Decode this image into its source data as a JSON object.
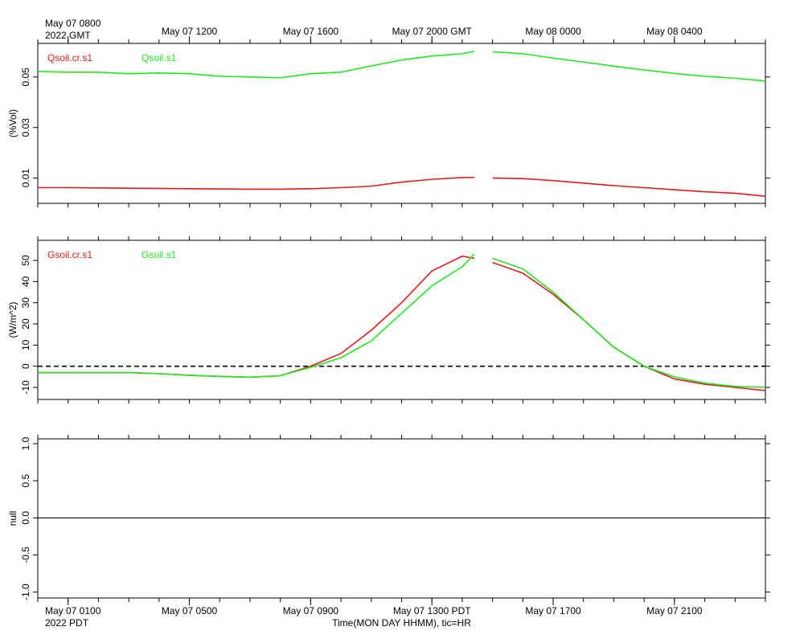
{
  "chart_data": [
    {
      "type": "line",
      "ylabel": "(%Vol)",
      "x": [
        0,
        1,
        2,
        3,
        4,
        5,
        6,
        7,
        8,
        9,
        10,
        11,
        12,
        13,
        14,
        14.4,
        14.7,
        15,
        16,
        17,
        18,
        19,
        20,
        21,
        22,
        23,
        24
      ],
      "xlim": [
        0,
        24
      ],
      "xticks_minor": [
        0,
        1,
        2,
        3,
        4,
        5,
        6,
        7,
        8,
        9,
        10,
        11,
        12,
        13,
        14,
        15,
        16,
        17,
        18,
        19,
        20,
        21,
        22,
        23,
        24
      ],
      "x2ticks": [
        {
          "value": 1,
          "label": "May 07 0800"
        },
        {
          "value": 5,
          "label": "May 07 1200"
        },
        {
          "value": 9,
          "label": "May 07 1600"
        },
        {
          "value": 13,
          "label": "May 07 2000 GMT"
        },
        {
          "value": 17,
          "label": "May 08 0000"
        },
        {
          "value": 21,
          "label": "May 08 0400"
        }
      ],
      "x2_note": "2022 GMT",
      "ylim": [
        0,
        0.0633
      ],
      "yticks": [
        0.01,
        0.03,
        0.05
      ],
      "series": [
        {
          "name": "Qsoil.cr.s1",
          "color": "#e41a1c",
          "values": [
            0.0062,
            0.0062,
            0.0061,
            0.006,
            0.0059,
            0.0058,
            0.0057,
            0.0056,
            0.0056,
            0.0058,
            0.0062,
            0.0068,
            0.0084,
            0.0095,
            0.0102,
            0.0103,
            null,
            0.01,
            0.0098,
            0.009,
            0.008,
            0.007,
            0.0062,
            0.0054,
            0.0046,
            0.004,
            0.0028
          ]
        },
        {
          "name": "Qsoil.s1",
          "color": "#1fe81f",
          "values": [
            0.0522,
            0.0519,
            0.0519,
            0.0513,
            0.0516,
            0.0513,
            0.0503,
            0.05,
            0.0497,
            0.0513,
            0.0519,
            0.0544,
            0.0567,
            0.0583,
            0.0592,
            0.0602,
            null,
            0.06,
            0.0592,
            0.0575,
            0.0559,
            0.0543,
            0.0528,
            0.0514,
            0.0503,
            0.0495,
            0.0484
          ]
        }
      ]
    },
    {
      "type": "line",
      "ylabel": "(W/m^2)",
      "x": [
        0,
        1,
        2,
        3,
        4,
        5,
        6,
        7,
        8,
        9,
        10,
        11,
        12,
        13,
        14,
        14.4,
        14.7,
        15,
        16,
        17,
        18,
        19,
        20,
        21,
        22,
        23,
        24
      ],
      "xlim": [
        0,
        24
      ],
      "xticks_minor": [
        0,
        1,
        2,
        3,
        4,
        5,
        6,
        7,
        8,
        9,
        10,
        11,
        12,
        13,
        14,
        15,
        16,
        17,
        18,
        19,
        20,
        21,
        22,
        23,
        24
      ],
      "ylim": [
        -15.7,
        59.5
      ],
      "yticks": [
        -10,
        0,
        10,
        20,
        30,
        40,
        50
      ],
      "zero_line": "dashed",
      "series": [
        {
          "name": "Gsoil.cr.s1",
          "color": "#e41a1c",
          "values": [
            -3,
            -3,
            -3,
            -3,
            -3.5,
            -4.3,
            -4.8,
            -5.2,
            -4.5,
            0,
            6,
            17,
            30,
            45,
            52,
            51,
            null,
            49,
            44,
            34,
            22,
            9,
            0,
            -6,
            -8.5,
            -10,
            -11.5
          ]
        },
        {
          "name": "Gsoil.s1",
          "color": "#1fe81f",
          "values": [
            -3,
            -3,
            -3,
            -3,
            -3.5,
            -4.3,
            -4.8,
            -5.2,
            -4.5,
            -0.5,
            4,
            12,
            25,
            38,
            47,
            53,
            null,
            51,
            46,
            35,
            22,
            9,
            0,
            -5,
            -8,
            -9.5,
            -10
          ]
        }
      ]
    },
    {
      "type": "line",
      "ylabel": "null",
      "xlabel": "Time(MON DAY HHMM), tic=HR",
      "xlim": [
        0,
        24
      ],
      "xticks_minor": [
        0,
        1,
        2,
        3,
        4,
        5,
        6,
        7,
        8,
        9,
        10,
        11,
        12,
        13,
        14,
        15,
        16,
        17,
        18,
        19,
        20,
        21,
        22,
        23,
        24
      ],
      "xticks": [
        {
          "value": 1,
          "label": "May 07 0100"
        },
        {
          "value": 5,
          "label": "May 07 0500"
        },
        {
          "value": 9,
          "label": "May 07 0900"
        },
        {
          "value": 13,
          "label": "May 07 1300 PDT"
        },
        {
          "value": 17,
          "label": "May 07 1700"
        },
        {
          "value": 21,
          "label": "May 07 2100"
        }
      ],
      "x_note": "2022 PDT",
      "ylim": [
        -1.08,
        1.065
      ],
      "yticks": [
        {
          "value": -1,
          "label": "-1.0"
        },
        {
          "value": -0.5,
          "label": "-0.5"
        },
        {
          "value": 0,
          "label": "0.0"
        },
        {
          "value": 0.5,
          "label": "0.5"
        },
        {
          "value": 1,
          "label": "1.0"
        }
      ],
      "zero_line": "solid",
      "series": []
    }
  ]
}
